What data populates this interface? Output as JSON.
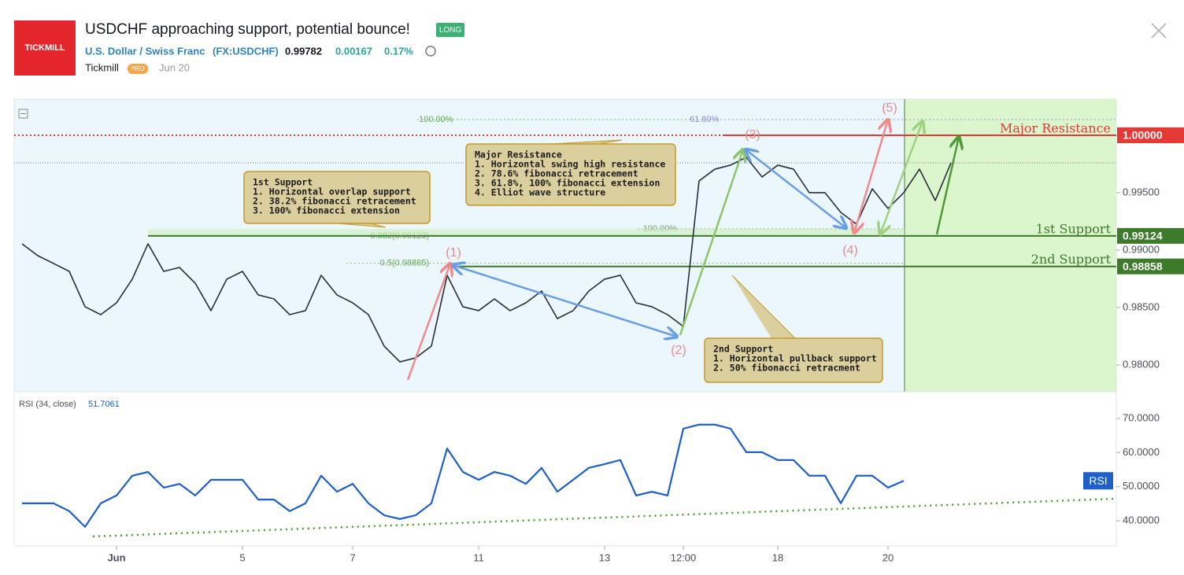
{
  "header": {
    "logo": "TICKMILL",
    "title": "USDCHF approaching support, potential bounce!",
    "badge": "LONG",
    "pair": "U.S. Dollar / Swiss Franc",
    "symbol": "(FX:USDCHF)",
    "price": "0.99782",
    "change": "0.00167",
    "change_pct": "0.17%",
    "author": "Tickmill",
    "author_badge": "PRO",
    "date": "Jun 20"
  },
  "chart_data": [
    {
      "type": "line",
      "color": "#2a2e39",
      "categories": [
        null,
        null,
        null,
        null,
        null,
        null,
        "Jun",
        null,
        null,
        null,
        null,
        null,
        null,
        null,
        "5",
        null,
        null,
        null,
        null,
        null,
        null,
        "7",
        null,
        null,
        null,
        null,
        null,
        null,
        null,
        "11",
        null,
        null,
        null,
        null,
        null,
        null,
        null,
        "13",
        null,
        null,
        null,
        null,
        "12:00",
        null,
        null,
        null,
        null,
        null,
        "18",
        null,
        null,
        null,
        null,
        null,
        null,
        "20",
        null,
        null,
        null,
        null,
        null,
        null,
        null,
        null,
        null,
        null,
        null,
        null,
        null,
        null
      ],
      "values": [
        0.99055,
        0.98952,
        0.98884,
        0.98815,
        0.98507,
        0.98438,
        0.98541,
        0.98747,
        0.99055,
        0.98815,
        0.98849,
        0.98712,
        0.98473,
        0.98747,
        0.98815,
        0.9861,
        0.98575,
        0.98438,
        0.98473,
        0.98781,
        0.9861,
        0.98541,
        0.98438,
        0.98164,
        0.98027,
        0.98062,
        0.98164,
        0.98781,
        0.98507,
        0.98473,
        0.98575,
        0.98473,
        0.98541,
        0.98644,
        0.98404,
        0.98473,
        0.98644,
        0.98747,
        0.98781,
        0.98541,
        0.98507,
        0.98438,
        0.98336,
        0.99603,
        0.99705,
        0.9974,
        0.99808,
        0.99637,
        0.9974,
        0.99705,
        0.995,
        0.995,
        0.99329,
        0.99226,
        0.99534,
        0.99363,
        0.995,
        0.99705,
        0.99432,
        0.9976,
        null,
        null,
        null,
        null,
        null,
        null,
        null,
        null,
        null,
        null
      ],
      "ylim": [
        0.97767,
        1.00315
      ],
      "yticks": [
        {
          "value": 0.98,
          "label": "0.98000"
        },
        {
          "value": 0.985,
          "label": "0.98500"
        },
        {
          "value": 0.99,
          "label": "0.99000"
        },
        {
          "value": 0.995,
          "label": "0.99500"
        }
      ],
      "levels": [
        {
          "name": "Major Resistance",
          "value": 1.0,
          "value_label": "1.00000",
          "color": "#e53935"
        },
        {
          "name": "1st Support",
          "value": 0.99124,
          "color": "#3d7a2a"
        },
        {
          "name": "2nd Support",
          "value": 0.98858,
          "color": "#3d7a2a"
        }
      ],
      "fib_lines": [
        {
          "label": "100.00%",
          "value": 1.00137
        },
        {
          "label": "61.80%",
          "value": 1.00137
        },
        {
          "label": "0.382(0.99123)",
          "value": 0.99123
        },
        {
          "label": "100.00%",
          "value": 0.99185
        },
        {
          "label": "0.5(0.98885)",
          "value": 0.98885
        }
      ],
      "waves": [
        "(1)",
        "(2)",
        "(3)",
        "(4)",
        "(5)"
      ],
      "annotations": [
        {
          "lines": [
            "1st Support",
            "1. Horizontal overlap support",
            "2. 38.2% fibonacci retracement",
            "3. 100% fibonacci extension"
          ]
        },
        {
          "lines": [
            "Major Resistance",
            "1. Horizontal swing high resistance",
            "2. 78.6% fibonacci retracement",
            "3. 61.8%, 100% fibonacci extension",
            "4. Elliot wave structure"
          ]
        },
        {
          "lines": [
            "2nd Support",
            "1. Horizontal pullback support",
            "2. 50% fibonacci retracment"
          ]
        }
      ]
    },
    {
      "type": "line",
      "title": "RSI (34, close)",
      "badge": "RSI",
      "last_value": 51.7061,
      "color": "#1e5fc8",
      "values": [
        45.1,
        45.1,
        45.1,
        42.8,
        38.2,
        45.1,
        47.4,
        53.2,
        54.3,
        49.7,
        50.8,
        47.4,
        52.0,
        52.0,
        52.0,
        46.2,
        46.2,
        42.8,
        45.1,
        53.2,
        48.5,
        50.8,
        45.1,
        41.6,
        40.5,
        41.6,
        45.1,
        61.2,
        54.3,
        52.0,
        54.3,
        53.2,
        50.8,
        55.5,
        48.5,
        52.0,
        55.5,
        56.6,
        57.8,
        47.4,
        48.5,
        47.4,
        67.0,
        68.2,
        68.2,
        67.0,
        60.1,
        60.1,
        57.8,
        57.8,
        53.2,
        53.2,
        45.1,
        53.2,
        53.2,
        49.7,
        51.7061,
        null,
        null,
        null,
        null,
        null,
        null,
        null,
        null,
        null,
        null,
        null,
        null,
        null
      ],
      "ylim": [
        32.6,
        77.85
      ],
      "yticks": [
        {
          "value": 40,
          "label": "40.0000"
        },
        {
          "value": 50,
          "label": "50.0000"
        },
        {
          "value": 60,
          "label": "60.0000"
        },
        {
          "value": 70,
          "label": "70.0000"
        }
      ]
    }
  ]
}
